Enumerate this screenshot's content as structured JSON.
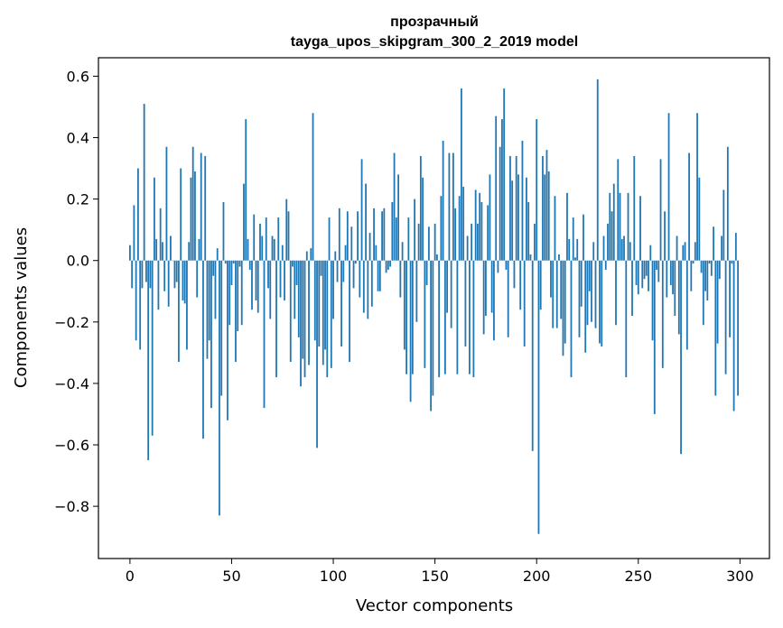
{
  "chart_data": {
    "type": "bar",
    "title": "прозрачный",
    "subtitle": "tayga_upos_skipgram_300_2_2019 model",
    "xlabel": "Vector components",
    "ylabel": "Components values",
    "xlim": [
      -15.5,
      314.5
    ],
    "ylim": [
      -0.97,
      0.66
    ],
    "xticks": [
      0,
      50,
      100,
      150,
      200,
      250,
      300
    ],
    "xtick_labels": [
      "0",
      "50",
      "100",
      "150",
      "200",
      "250",
      "300"
    ],
    "yticks": [
      -0.8,
      -0.6,
      -0.4,
      -0.2,
      0.0,
      0.2,
      0.4,
      0.6
    ],
    "ytick_labels": [
      "−0.8",
      "−0.6",
      "−0.4",
      "−0.2",
      "0.0",
      "0.2",
      "0.4",
      "0.6"
    ],
    "grid": false,
    "bar_color": "#1f77b4",
    "x": [
      0,
      1,
      2,
      3,
      4,
      5,
      6,
      7,
      8,
      9,
      10,
      11,
      12,
      13,
      14,
      15,
      16,
      17,
      18,
      19,
      20,
      21,
      22,
      23,
      24,
      25,
      26,
      27,
      28,
      29,
      30,
      31,
      32,
      33,
      34,
      35,
      36,
      37,
      38,
      39,
      40,
      41,
      42,
      43,
      44,
      45,
      46,
      47,
      48,
      49,
      50,
      51,
      52,
      53,
      54,
      55,
      56,
      57,
      58,
      59,
      60,
      61,
      62,
      63,
      64,
      65,
      66,
      67,
      68,
      69,
      70,
      71,
      72,
      73,
      74,
      75,
      76,
      77,
      78,
      79,
      80,
      81,
      82,
      83,
      84,
      85,
      86,
      87,
      88,
      89,
      90,
      91,
      92,
      93,
      94,
      95,
      96,
      97,
      98,
      99,
      100,
      101,
      102,
      103,
      104,
      105,
      106,
      107,
      108,
      109,
      110,
      111,
      112,
      113,
      114,
      115,
      116,
      117,
      118,
      119,
      120,
      121,
      122,
      123,
      124,
      125,
      126,
      127,
      128,
      129,
      130,
      131,
      132,
      133,
      134,
      135,
      136,
      137,
      138,
      139,
      140,
      141,
      142,
      143,
      144,
      145,
      146,
      147,
      148,
      149,
      150,
      151,
      152,
      153,
      154,
      155,
      156,
      157,
      158,
      159,
      160,
      161,
      162,
      163,
      164,
      165,
      166,
      167,
      168,
      169,
      170,
      171,
      172,
      173,
      174,
      175,
      176,
      177,
      178,
      179,
      180,
      181,
      182,
      183,
      184,
      185,
      186,
      187,
      188,
      189,
      190,
      191,
      192,
      193,
      194,
      195,
      196,
      197,
      198,
      199,
      200,
      201,
      202,
      203,
      204,
      205,
      206,
      207,
      208,
      209,
      210,
      211,
      212,
      213,
      214,
      215,
      216,
      217,
      218,
      219,
      220,
      221,
      222,
      223,
      224,
      225,
      226,
      227,
      228,
      229,
      230,
      231,
      232,
      233,
      234,
      235,
      236,
      237,
      238,
      239,
      240,
      241,
      242,
      243,
      244,
      245,
      246,
      247,
      248,
      249,
      250,
      251,
      252,
      253,
      254,
      255,
      256,
      257,
      258,
      259,
      260,
      261,
      262,
      263,
      264,
      265,
      266,
      267,
      268,
      269,
      270,
      271,
      272,
      273,
      274,
      275,
      276,
      277,
      278,
      279,
      280,
      281,
      282,
      283,
      284,
      285,
      286,
      287,
      288,
      289,
      290,
      291,
      292,
      293,
      294,
      295,
      296,
      297,
      298,
      299
    ],
    "values": [
      0.05,
      -0.09,
      0.18,
      -0.26,
      0.3,
      -0.29,
      -0.09,
      0.51,
      -0.07,
      -0.65,
      -0.09,
      -0.57,
      0.27,
      0.07,
      -0.16,
      0.17,
      0.06,
      -0.1,
      0.37,
      -0.15,
      0.08,
      0.0,
      -0.09,
      -0.07,
      -0.33,
      0.3,
      -0.13,
      -0.14,
      -0.29,
      0.06,
      0.27,
      0.37,
      0.29,
      -0.12,
      0.07,
      0.35,
      -0.58,
      0.34,
      -0.32,
      -0.26,
      -0.48,
      -0.05,
      -0.19,
      0.04,
      -0.83,
      -0.44,
      0.19,
      -0.01,
      -0.52,
      -0.21,
      -0.08,
      -0.01,
      -0.33,
      -0.23,
      -0.02,
      -0.21,
      0.25,
      0.46,
      0.07,
      -0.03,
      -0.16,
      0.15,
      -0.13,
      -0.17,
      0.12,
      0.08,
      -0.48,
      0.14,
      -0.09,
      -0.19,
      0.08,
      0.07,
      -0.38,
      0.14,
      -0.12,
      0.05,
      -0.13,
      0.2,
      0.16,
      -0.33,
      -0.02,
      -0.19,
      -0.08,
      -0.25,
      -0.41,
      -0.32,
      -0.38,
      0.03,
      -0.34,
      0.04,
      0.48,
      -0.26,
      -0.61,
      -0.28,
      -0.05,
      -0.34,
      -0.29,
      -0.38,
      0.14,
      -0.35,
      -0.19,
      0.03,
      -0.07,
      0.17,
      -0.28,
      -0.07,
      0.05,
      0.16,
      -0.33,
      0.11,
      -0.09,
      -0.01,
      0.16,
      -0.12,
      0.33,
      -0.17,
      0.25,
      -0.19,
      0.09,
      -0.15,
      0.17,
      0.05,
      -0.1,
      -0.1,
      0.16,
      0.17,
      -0.04,
      -0.03,
      -0.02,
      0.19,
      0.35,
      0.14,
      0.28,
      -0.12,
      0.06,
      -0.29,
      -0.37,
      0.14,
      -0.46,
      -0.37,
      0.2,
      -0.2,
      0.12,
      0.34,
      0.27,
      -0.35,
      -0.08,
      0.11,
      -0.49,
      -0.44,
      0.12,
      0.02,
      -0.38,
      0.21,
      0.39,
      -0.37,
      -0.17,
      0.35,
      -0.22,
      0.35,
      0.17,
      -0.37,
      0.21,
      0.56,
      0.24,
      -0.28,
      0.08,
      -0.37,
      0.12,
      -0.38,
      0.23,
      0.12,
      0.22,
      0.19,
      -0.24,
      -0.18,
      0.18,
      0.28,
      -0.17,
      -0.26,
      0.47,
      -0.04,
      0.37,
      0.46,
      0.56,
      -0.03,
      -0.25,
      0.34,
      0.26,
      -0.09,
      0.34,
      0.28,
      -0.16,
      0.39,
      -0.28,
      0.27,
      0.19,
      0.02,
      -0.62,
      0.12,
      0.46,
      -0.89,
      -0.16,
      0.34,
      0.28,
      0.36,
      0.29,
      -0.12,
      -0.22,
      0.21,
      -0.22,
      0.02,
      -0.19,
      -0.31,
      -0.27,
      0.22,
      0.07,
      -0.38,
      0.14,
      0.01,
      0.07,
      -0.25,
      -0.15,
      0.15,
      -0.3,
      -0.21,
      -0.1,
      -0.2,
      0.06,
      -0.22,
      0.59,
      -0.27,
      -0.28,
      0.08,
      -0.03,
      0.12,
      0.22,
      0.16,
      0.25,
      -0.21,
      0.33,
      0.22,
      0.07,
      0.08,
      -0.38,
      0.22,
      0.06,
      -0.18,
      0.34,
      -0.08,
      -0.11,
      0.21,
      -0.09,
      -0.06,
      -0.05,
      -0.1,
      0.05,
      -0.26,
      -0.5,
      -0.03,
      -0.07,
      0.33,
      -0.35,
      0.16,
      -0.12,
      0.48,
      -0.08,
      -0.11,
      -0.18,
      0.08,
      -0.24,
      -0.63,
      0.05,
      0.06,
      -0.29,
      0.35,
      -0.1,
      -0.01,
      0.06,
      0.48,
      0.27,
      -0.04,
      -0.21,
      -0.1,
      -0.13,
      -0.01,
      -0.05,
      0.11,
      -0.44,
      -0.27,
      -0.06,
      0.08,
      0.23,
      -0.37,
      0.37,
      -0.25,
      -0.01,
      -0.49,
      0.09,
      -0.44
    ]
  }
}
